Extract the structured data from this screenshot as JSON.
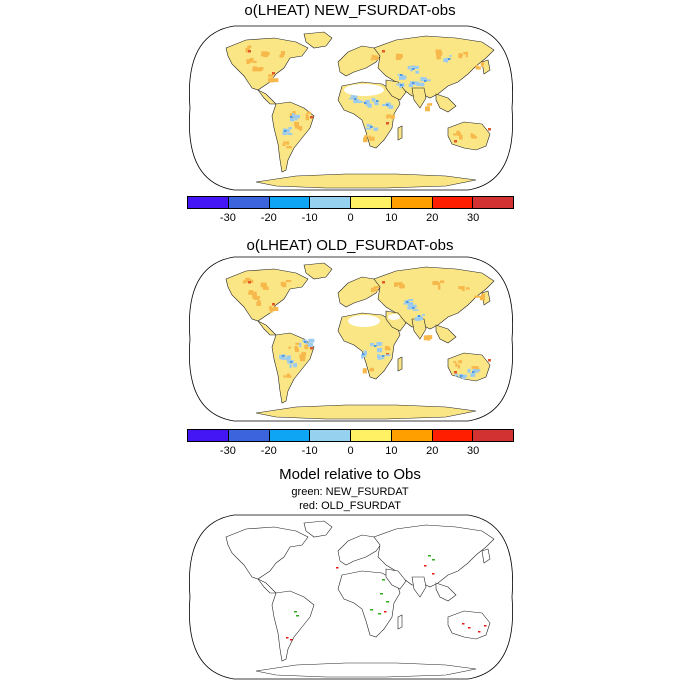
{
  "panels": [
    {
      "title": "o(LHEAT) NEW_FSURDAT-obs"
    },
    {
      "title": "o(LHEAT) OLD_FSURDAT-obs"
    },
    {
      "title": "Model relative to Obs",
      "subtitles": [
        "green: NEW_FSURDAT",
        "red: OLD_FSURDAT"
      ]
    }
  ],
  "colorbar": {
    "colors": [
      "#4416f5",
      "#3c64dc",
      "#0fa5f5",
      "#96d2f0",
      "#fff064",
      "#ffa000",
      "#ff1e00",
      "#d23232"
    ],
    "ticks": [
      "-30",
      "-20",
      "-10",
      "0",
      "10",
      "20",
      "30"
    ]
  },
  "map_colors": {
    "land_fill": "#fbe686",
    "positive_patch": "#f7b84b",
    "strong_positive": "#e05a2a",
    "negative_patch": "#9ccbee",
    "strong_negative": "#4f9ae0",
    "desert_blank": "#ffffff",
    "new_marker": "#33aa22",
    "old_marker": "#ee1111"
  }
}
